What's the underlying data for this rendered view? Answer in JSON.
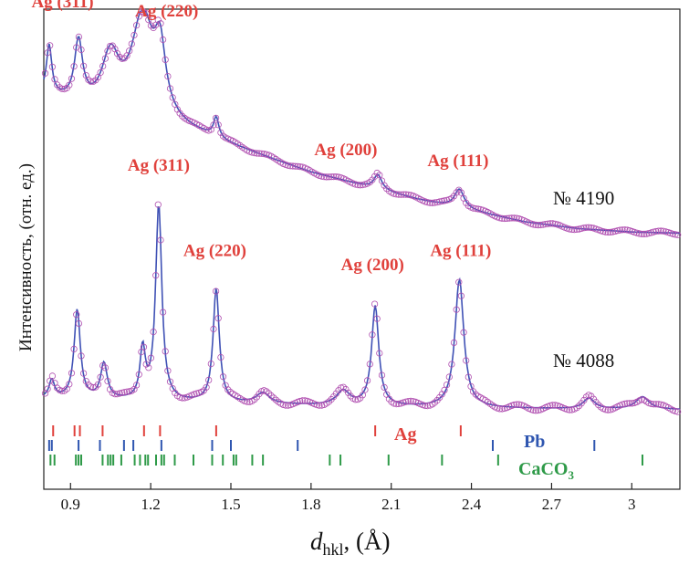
{
  "chart_data": {
    "type": "line",
    "xlabel_main": "d",
    "xlabel_sub": "hkl",
    "xlabel_unit": ", (Å)",
    "ylabel": "Интенсивность, (отн. ед.)",
    "xlim": [
      0.8,
      3.18
    ],
    "xticks": [
      0.9,
      1.2,
      1.5,
      1.8,
      2.1,
      2.4,
      2.7,
      3.0
    ],
    "xtick_labels": [
      "0.9",
      "1.2",
      "1.5",
      "1.8",
      "2.1",
      "2.4",
      "2.7",
      "3"
    ],
    "colors": {
      "fit": "#3f51b5",
      "observed": "#b04fb0",
      "label": "#e0413c",
      "Ag": "#e0413c",
      "Pb": "#2f56b0",
      "CaCO3": "#2e9a48"
    },
    "series": [
      {
        "name": "№ 4190",
        "label": "№ 4190",
        "base": 0.18,
        "peaks": [
          [
            0.82,
            0.22,
            0.012
          ],
          [
            0.93,
            0.27,
            0.018
          ],
          [
            1.05,
            0.24,
            0.04
          ],
          [
            1.17,
            0.45,
            0.05
          ],
          [
            1.235,
            0.28,
            0.025
          ],
          [
            1.445,
            0.09,
            0.012
          ],
          [
            2.05,
            0.065,
            0.018
          ],
          [
            2.355,
            0.085,
            0.022
          ]
        ],
        "background": [
          [
            0.8,
            0.62
          ],
          [
            1.0,
            0.55
          ],
          [
            1.2,
            0.5
          ],
          [
            1.4,
            0.44
          ],
          [
            1.6,
            0.36
          ],
          [
            1.8,
            0.28
          ],
          [
            2.0,
            0.22
          ],
          [
            2.2,
            0.16
          ],
          [
            2.4,
            0.11
          ],
          [
            2.6,
            0.06
          ],
          [
            2.8,
            0.03
          ],
          [
            3.0,
            0.015
          ],
          [
            3.18,
            0.01
          ]
        ],
        "annotations": [
          {
            "text": "Ag (311)",
            "x": 0.87,
            "y": 1.02
          },
          {
            "text": "Ag (220)",
            "x": 1.26,
            "y": 0.98
          },
          {
            "text": "Ag (200)",
            "x": 1.93,
            "y": 0.36
          },
          {
            "text": "Ag (111)",
            "x": 2.35,
            "y": 0.31
          }
        ]
      },
      {
        "name": "№ 4088",
        "label": "№ 4088",
        "base": 0.0,
        "peaks": [
          [
            0.83,
            0.05,
            0.012
          ],
          [
            0.925,
            0.25,
            0.014
          ],
          [
            1.025,
            0.1,
            0.015
          ],
          [
            1.17,
            0.14,
            0.012
          ],
          [
            1.23,
            0.55,
            0.014
          ],
          [
            1.445,
            0.32,
            0.014
          ],
          [
            1.62,
            0.03,
            0.03
          ],
          [
            1.92,
            0.04,
            0.03
          ],
          [
            2.04,
            0.28,
            0.016
          ],
          [
            2.355,
            0.36,
            0.02
          ],
          [
            2.84,
            0.03,
            0.025
          ],
          [
            3.04,
            0.035,
            0.03
          ]
        ],
        "background": [
          [
            0.8,
            0.04
          ],
          [
            1.2,
            0.03
          ],
          [
            1.8,
            0.02
          ],
          [
            2.4,
            0.012
          ],
          [
            3.18,
            0.008
          ]
        ],
        "annotations": [
          {
            "text": "Ag (311)",
            "x": 1.23,
            "y": 0.68
          },
          {
            "text": "Ag (220)",
            "x": 1.44,
            "y": 0.44
          },
          {
            "text": "Ag (200)",
            "x": 2.03,
            "y": 0.4
          },
          {
            "text": "Ag (111)",
            "x": 2.36,
            "y": 0.44
          }
        ]
      }
    ],
    "reference_phases": [
      {
        "name": "Ag",
        "color": "#e0413c",
        "positions": [
          0.835,
          0.915,
          0.935,
          1.02,
          1.175,
          1.235,
          1.445,
          2.04,
          2.36
        ]
      },
      {
        "name": "Pb",
        "color": "#2f56b0",
        "positions": [
          0.82,
          0.83,
          0.93,
          1.01,
          1.1,
          1.135,
          1.24,
          1.43,
          1.5,
          1.75,
          2.48,
          2.86
        ]
      },
      {
        "name": "CaCO3",
        "name_main": "CaCO",
        "name_sub": "3",
        "color": "#2e9a48",
        "positions": [
          0.825,
          0.84,
          0.92,
          0.93,
          0.94,
          1.02,
          1.04,
          1.05,
          1.06,
          1.09,
          1.14,
          1.16,
          1.18,
          1.19,
          1.22,
          1.24,
          1.25,
          1.29,
          1.36,
          1.43,
          1.47,
          1.51,
          1.52,
          1.58,
          1.62,
          1.87,
          1.91,
          2.09,
          2.29,
          2.5,
          3.04
        ]
      }
    ]
  }
}
